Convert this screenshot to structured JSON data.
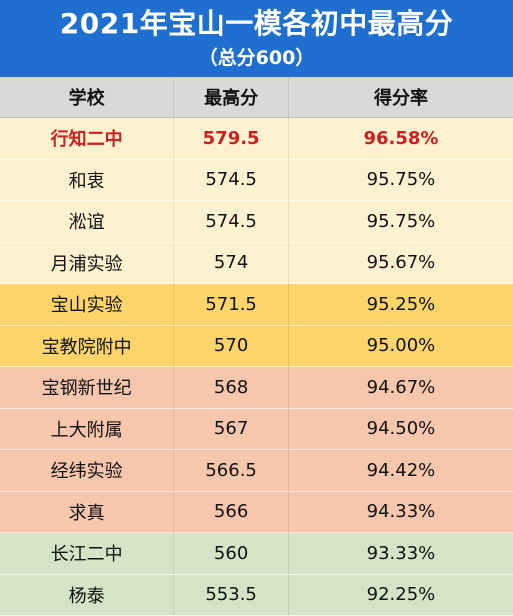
{
  "title": "2021年宝山一模各初中最高分",
  "subtitle": "（总分600）",
  "columns": [
    "学校",
    "最高分",
    "得分率"
  ],
  "colors": {
    "header_bg": "#1f6fd1",
    "colhead_bg": "#d9d9d9",
    "tier1": "#fdf1cf",
    "tier2": "#fdd56b",
    "tier3": "#f6c6ad",
    "tier4": "#d3e5c6",
    "highlight_text": "#cc1f1f"
  },
  "rows": [
    {
      "school": "行知二中",
      "score": "579.5",
      "rate": "96.58%",
      "tier": "tier1",
      "highlight": true
    },
    {
      "school": "和衷",
      "score": "574.5",
      "rate": "95.75%",
      "tier": "tier1",
      "highlight": false
    },
    {
      "school": "淞谊",
      "score": "574.5",
      "rate": "95.75%",
      "tier": "tier1",
      "highlight": false
    },
    {
      "school": "月浦实验",
      "score": "574",
      "rate": "95.67%",
      "tier": "tier1",
      "highlight": false
    },
    {
      "school": "宝山实验",
      "score": "571.5",
      "rate": "95.25%",
      "tier": "tier2",
      "highlight": false
    },
    {
      "school": "宝教院附中",
      "score": "570",
      "rate": "95.00%",
      "tier": "tier2",
      "highlight": false
    },
    {
      "school": "宝钢新世纪",
      "score": "568",
      "rate": "94.67%",
      "tier": "tier3",
      "highlight": false
    },
    {
      "school": "上大附属",
      "score": "567",
      "rate": "94.50%",
      "tier": "tier3",
      "highlight": false
    },
    {
      "school": "经纬实验",
      "score": "566.5",
      "rate": "94.42%",
      "tier": "tier3",
      "highlight": false
    },
    {
      "school": "求真",
      "score": "566",
      "rate": "94.33%",
      "tier": "tier3",
      "highlight": false
    },
    {
      "school": "长江二中",
      "score": "560",
      "rate": "93.33%",
      "tier": "tier4",
      "highlight": false
    },
    {
      "school": "杨泰",
      "score": "553.5",
      "rate": "92.25%",
      "tier": "tier4",
      "highlight": false
    }
  ]
}
